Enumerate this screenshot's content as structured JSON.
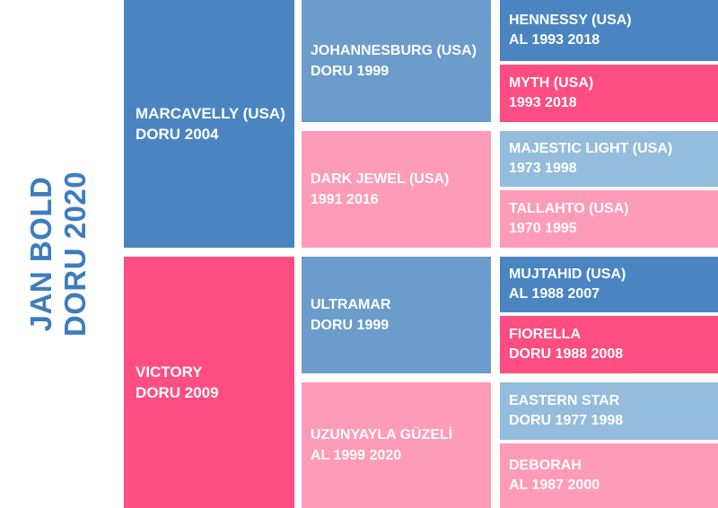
{
  "title": {
    "line1": "JAN BOLD",
    "line2": "DORU 2020"
  },
  "colors": {
    "title": "#3d7dbd",
    "sire_dark_blue": "#4a85c2",
    "mid_blue": "#6b9ccc",
    "light_blue": "#94bcdd",
    "hot_pink": "#fd4d82",
    "mid_pink": "#fe7aa1",
    "light_pink": "#fe9bb9"
  },
  "pedigree": {
    "sire": {
      "name": "MARCAVELLY (USA)",
      "details": "DORU 2004"
    },
    "dam": {
      "name": "VICTORY",
      "details": "DORU 2009"
    },
    "sire_sire": {
      "name": "JOHANNESBURG (USA)",
      "details": "DORU 1999"
    },
    "sire_dam": {
      "name": "DARK JEWEL (USA)",
      "details": "1991 2016"
    },
    "dam_sire": {
      "name": "ULTRAMAR",
      "details": "DORU 1999"
    },
    "dam_dam": {
      "name": "UZUNYAYLA GÜZELİ",
      "details": "AL 1999 2020"
    },
    "ggp": [
      {
        "name": "HENNESSY (USA)",
        "details": "AL 1993 2018"
      },
      {
        "name": "MYTH (USA)",
        "details": "1993 2018"
      },
      {
        "name": "MAJESTIC LIGHT (USA)",
        "details": "1973 1998"
      },
      {
        "name": "TALLAHTO (USA)",
        "details": "1970 1995"
      },
      {
        "name": "MUJTAHID (USA)",
        "details": "AL 1988 2007"
      },
      {
        "name": "FIORELLA",
        "details": "DORU 1988 2008"
      },
      {
        "name": "EASTERN STAR",
        "details": "DORU 1977 1998"
      },
      {
        "name": "DEBORAH",
        "details": "AL 1987 2000"
      }
    ]
  }
}
